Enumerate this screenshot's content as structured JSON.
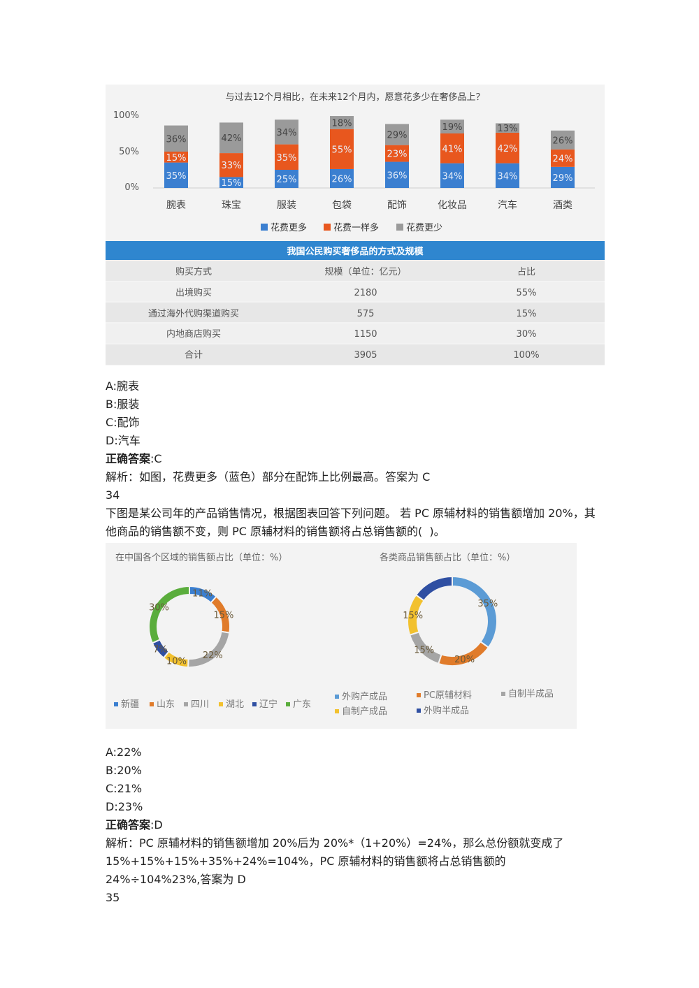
{
  "q33": {
    "chart": {
      "title": "与过去12个月相比，在未来12个月内，愿意花多少在奢侈品上？",
      "yticks": [
        "100%",
        "50%",
        "0%"
      ],
      "legend": [
        "花费更多",
        "花费一样多",
        "花费更少"
      ],
      "colors": {
        "more": "#3b7fd0",
        "same": "#e8571e",
        "less": "#9a9a9a"
      }
    },
    "chart_data": {
      "type": "bar",
      "stacked": true,
      "title": "与过去12个月相比，在未来12个月内，愿意花多少在奢侈品上？",
      "categories": [
        "腕表",
        "珠宝",
        "服装",
        "包袋",
        "配饰",
        "化妆品",
        "汽车",
        "酒类"
      ],
      "series": [
        {
          "name": "花费更多",
          "values": [
            35,
            15,
            25,
            26,
            36,
            34,
            34,
            29
          ]
        },
        {
          "name": "花费一样多",
          "values": [
            15,
            33,
            35,
            55,
            23,
            41,
            42,
            24
          ]
        },
        {
          "name": "花费更少",
          "values": [
            36,
            42,
            34,
            18,
            29,
            19,
            13,
            26
          ]
        }
      ],
      "ylim": [
        0,
        100
      ],
      "legend_position": "bottom"
    },
    "table": {
      "title": "我国公民购买奢侈品的方式及规模",
      "headers": [
        "购买方式",
        "规模（单位：亿元）",
        "占比"
      ],
      "rows": [
        [
          "出境购买",
          "2180",
          "55%"
        ],
        [
          "通过海外代购渠道购买",
          "575",
          "15%"
        ],
        [
          "内地商店购买",
          "1150",
          "30%"
        ],
        [
          "合计",
          "3905",
          "100%"
        ]
      ]
    },
    "options": [
      "A:腕表",
      "B:服装",
      "C:配饰",
      "D:汽车"
    ],
    "answer_label": "正确答案",
    "answer_value": ":C",
    "explanation": "解析：如图，花费更多（蓝色）部分在配饰上比例最高。答案为 C"
  },
  "q34": {
    "number": "34",
    "question": "下图是某公司年的产品销售情况，根据图表回答下列问题。 若 PC 原辅材料的销售额增加 20%，其他商品的销售额不变，则 PC 原辅材料的销售额将占总销售额的(  )。",
    "chart_data": [
      {
        "type": "pie",
        "donut": true,
        "title": "在中国各个区域的销售额占比（单位：%）",
        "slices": [
          {
            "label": "新疆",
            "value": 11,
            "display": "11%",
            "color": "#3b7fd0"
          },
          {
            "label": "山东",
            "value": 15,
            "display": "15%",
            "color": "#e07b2a"
          },
          {
            "label": "四川",
            "value": 22,
            "display": "22%",
            "color": "#a5a5a5"
          },
          {
            "label": "湖北",
            "value": 10,
            "display": "10%",
            "color": "#f2c12e"
          },
          {
            "label": "辽宁",
            "value": 7,
            "display": "7%",
            "color": "#2f4fa2"
          },
          {
            "label": "广东",
            "value": 30,
            "display": "30%",
            "color": "#5aad3c"
          }
        ],
        "legend": [
          "新疆",
          "山东",
          "四川",
          "湖北",
          "辽宁",
          "广东"
        ]
      },
      {
        "type": "pie",
        "donut": true,
        "title": "各类商品销售额占比（单位：%）",
        "slices": [
          {
            "label": "外购产成品",
            "value": 35,
            "display": "35%",
            "color": "#5b9bd5"
          },
          {
            "label": "PC原辅材料",
            "value": 20,
            "display": "20%",
            "color": "#e07b2a"
          },
          {
            "label": "自制半成品",
            "value": 15,
            "display": "15%",
            "color": "#a5a5a5"
          },
          {
            "label": "自制产成品",
            "value": 15,
            "display": "15%",
            "color": "#f2c12e"
          },
          {
            "label": "外购半成品",
            "value": 15,
            "display": "",
            "color": "#2f4fa2"
          }
        ],
        "legend": [
          "外购产成品",
          "PC原辅材料",
          "自制半成品",
          "自制产成品",
          "外购半成品"
        ]
      }
    ],
    "options": [
      "A:22%",
      "B:20%",
      "C:21%",
      "D:23%"
    ],
    "answer_label": "正确答案",
    "answer_value": ":D",
    "explanation": "解析：PC 原辅材料的销售额增加 20%后为 20%*（1+20%）=24%，那么总份额就变成了 15%+15%+15%+35%+24%=104%，PC 原辅材料的销售额将占总销售额的 24%÷104%23%,答案为 D"
  },
  "q35": {
    "number": "35"
  }
}
